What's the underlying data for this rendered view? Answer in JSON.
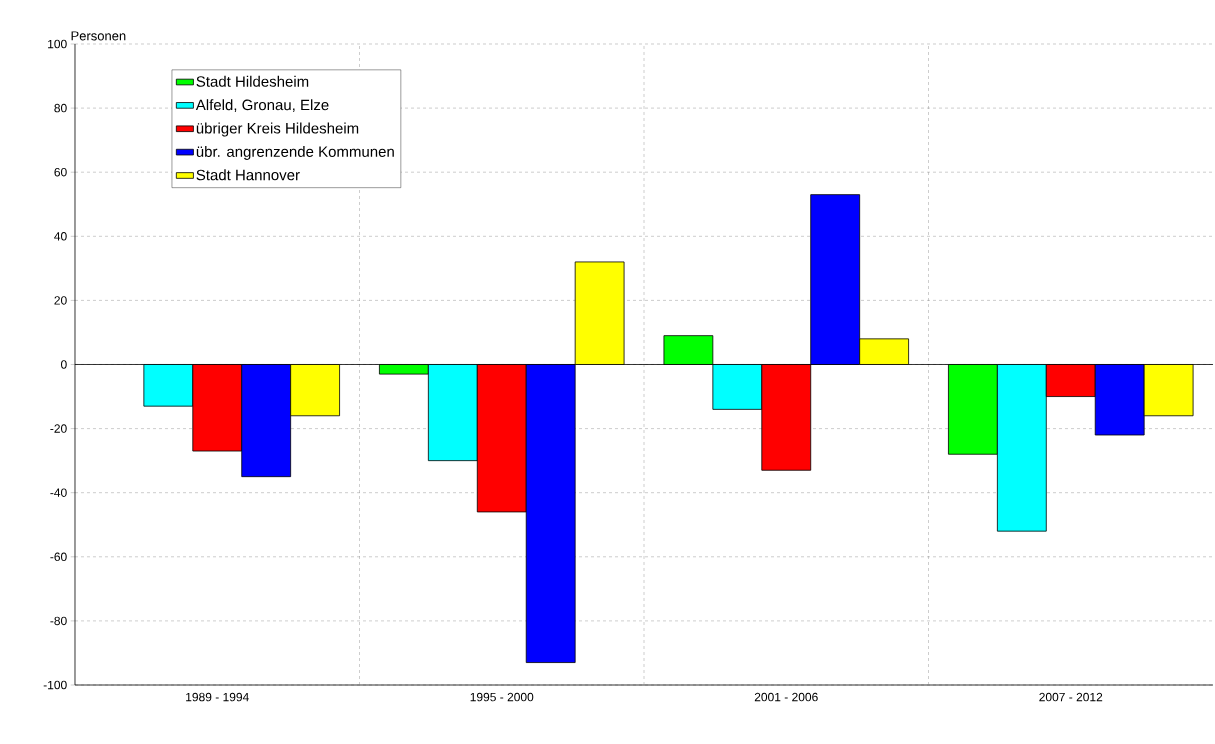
{
  "chart_data": {
    "type": "bar",
    "ylabel": "Personen",
    "categories": [
      "1989 - 1994",
      "1995 - 2000",
      "2001 - 2006",
      "2007 - 2012"
    ],
    "series": [
      {
        "name": "Stadt Hildesheim",
        "color": "#00ff00",
        "values": [
          0,
          -3,
          9,
          -28
        ]
      },
      {
        "name": "Alfeld, Gronau, Elze",
        "color": "#00ffff",
        "values": [
          -13,
          -30,
          -14,
          -52
        ]
      },
      {
        "name": "übriger Kreis Hildesheim",
        "color": "#ff0000",
        "values": [
          -27,
          -46,
          -33,
          -10
        ]
      },
      {
        "name": "übr. angrenzende Kommunen",
        "color": "#0000ff",
        "values": [
          -35,
          -93,
          53,
          -22
        ]
      },
      {
        "name": "Stadt Hannover",
        "color": "#ffff00",
        "values": [
          -16,
          32,
          8,
          -16
        ]
      }
    ],
    "ylim": [
      -100,
      100
    ],
    "yticks": [
      -100,
      -80,
      -60,
      -40,
      -20,
      0,
      20,
      40,
      60,
      80,
      100
    ],
    "grid": true,
    "legend": "top left"
  }
}
